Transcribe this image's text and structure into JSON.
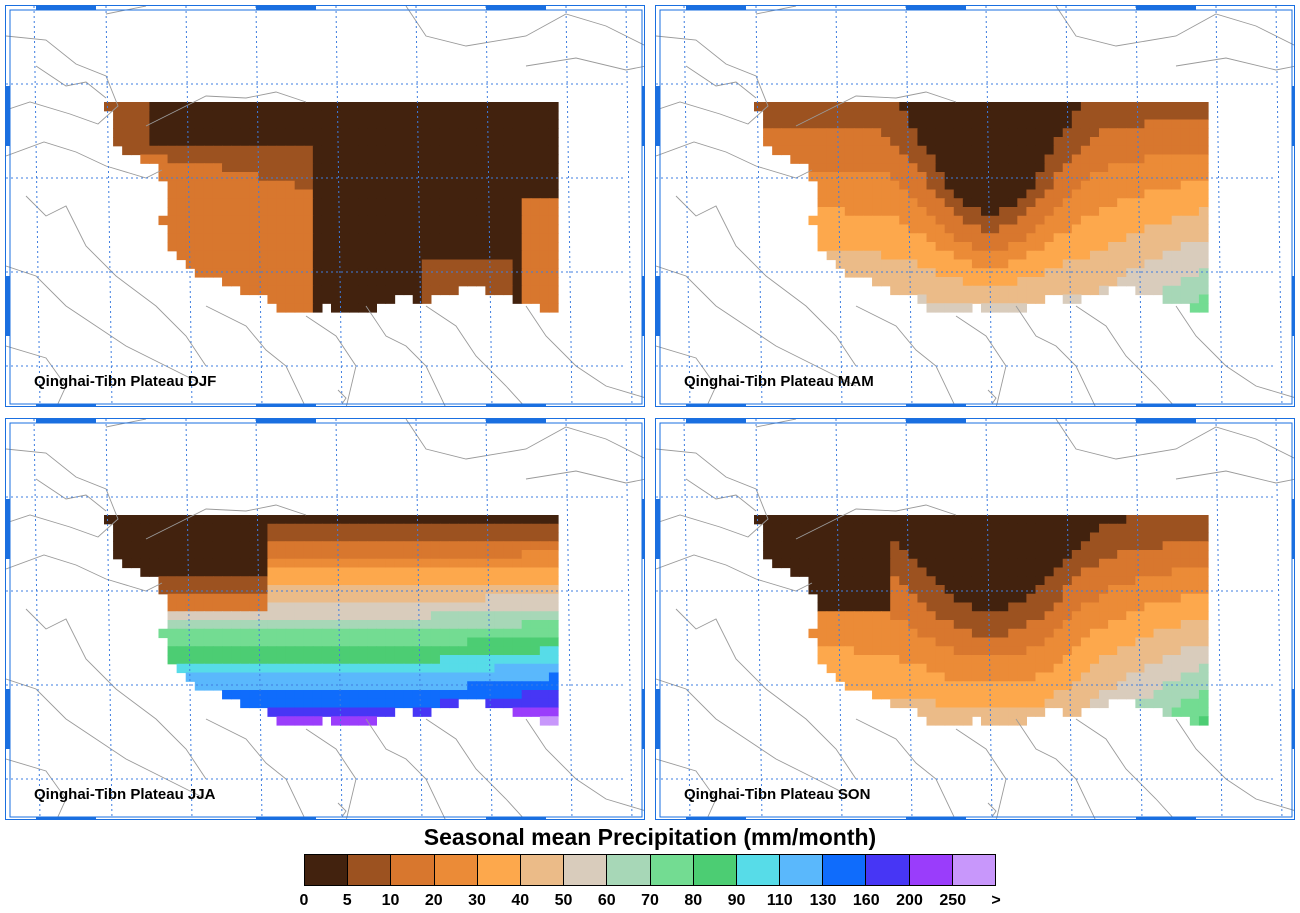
{
  "panels": [
    {
      "label": "Qinghai-Tibn Plateau DJF",
      "season": "DJF"
    },
    {
      "label": "Qinghai-Tibn Plateau MAM",
      "season": "MAM"
    },
    {
      "label": "Qinghai-Tibn Plateau JJA",
      "season": "JJA"
    },
    {
      "label": "Qinghai-Tibn Plateau SON",
      "season": "SON"
    }
  ],
  "colorbar": {
    "title": "Seasonal mean Precipitation (mm/month)",
    "ticks": [
      "0",
      "5",
      "10",
      "20",
      "30",
      "40",
      "50",
      "60",
      "70",
      "80",
      "90",
      "110",
      "130",
      "160",
      "200",
      "250",
      ">"
    ],
    "colors": [
      "#42220e",
      "#9c5220",
      "#d8772e",
      "#eb8b37",
      "#fda84c",
      "#ebbb88",
      "#d9ccbc",
      "#a7d7b7",
      "#73dc92",
      "#4ccd73",
      "#57dce8",
      "#5ab8fc",
      "#0f6cfc",
      "#4736f5",
      "#9a3dfb",
      "#c897fb"
    ]
  },
  "colors": {
    "frame": "#1a6fe0",
    "grid": "#3d7de0",
    "border": "#9a9a9a"
  }
}
